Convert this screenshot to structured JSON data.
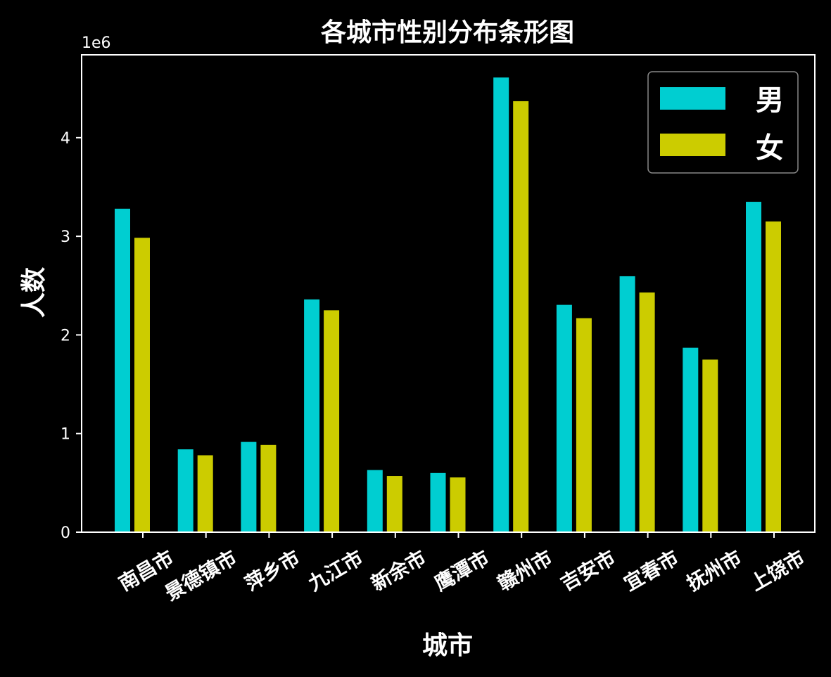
{
  "chart_data": {
    "type": "bar",
    "title": "各城市性别分布条形图",
    "xlabel": "城市",
    "ylabel": "人数",
    "offset_text": "1e6",
    "scale": 1000000,
    "categories": [
      "南昌市",
      "景德镇市",
      "萍乡市",
      "九江市",
      "新余市",
      "鹰潭市",
      "赣州市",
      "吉安市",
      "宜春市",
      "抚州市",
      "上饶市"
    ],
    "series": [
      {
        "name": "男",
        "color": "#00CED1",
        "values": [
          3280000,
          840000,
          915000,
          2360000,
          630000,
          600000,
          4610000,
          2305000,
          2595000,
          1870000,
          3350000
        ]
      },
      {
        "name": "女",
        "color": "#CCCC00",
        "values": [
          2985000,
          780000,
          885000,
          2250000,
          570000,
          555000,
          4370000,
          2170000,
          2430000,
          1750000,
          3150000
        ]
      }
    ],
    "ylim": [
      0,
      4840000
    ],
    "yticks": [
      0,
      1,
      2,
      3,
      4
    ],
    "xtick_rotation": -30,
    "legend_position": "top-right",
    "grid": false,
    "background": "#000000",
    "foreground": "#ffffff"
  }
}
